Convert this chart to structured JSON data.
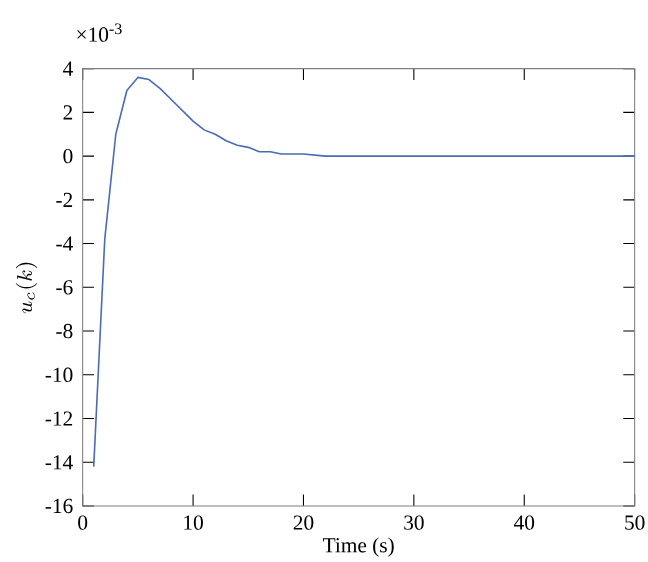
{
  "chart_data": {
    "type": "line",
    "xlabel": "Time (s)",
    "ylabel": "u_c(k)",
    "annotations": [
      "×10$^{-3}$"
    ],
    "x": [
      1,
      2,
      3,
      4,
      5,
      6,
      7,
      8,
      9,
      10,
      11,
      12,
      13,
      14,
      15,
      16,
      17,
      18,
      20,
      22,
      25,
      30,
      40,
      50
    ],
    "series": [
      {
        "color": "#4a6bb5",
        "values": [
          -14.2,
          -3.8,
          1.0,
          3.0,
          3.6,
          3.5,
          3.1,
          2.6,
          2.1,
          1.6,
          1.2,
          1.0,
          0.7,
          0.5,
          0.4,
          0.2,
          0.2,
          0.1,
          0.1,
          0,
          0,
          0,
          0,
          0
        ]
      }
    ],
    "xlim": [
      0,
      50
    ],
    "ylim": [
      -16,
      4
    ],
    "xticks": [
      0,
      10,
      20,
      30,
      40,
      50
    ],
    "yticks": [
      -16,
      -14,
      -12,
      -10,
      -8,
      -6,
      -4,
      -2,
      0,
      2,
      4
    ],
    "grid": false
  }
}
